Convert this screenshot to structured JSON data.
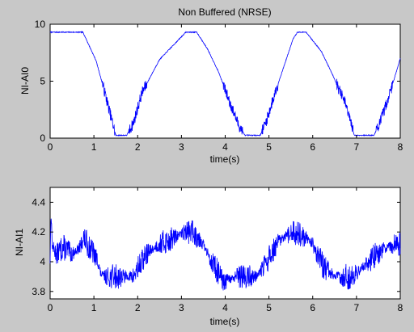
{
  "figure": {
    "background": "#c8c8c8",
    "axes_background": "#ffffff",
    "line_color": "#0000ff"
  },
  "chart_data": [
    {
      "type": "line",
      "title": "Non Buffered (NRSE)",
      "xlabel": "time(s)",
      "ylabel": "NI-AI0",
      "xlim": [
        0,
        8
      ],
      "ylim": [
        0,
        10
      ],
      "xticks": [
        0,
        1,
        2,
        3,
        4,
        5,
        6,
        7,
        8
      ],
      "yticks": [
        0,
        5,
        10
      ],
      "grid": false,
      "series": [
        {
          "x": [
            0,
            0.75,
            1.05,
            1.25,
            1.4,
            1.5,
            1.75,
            1.9,
            2.1,
            2.5,
            2.9,
            3.1,
            3.35,
            3.6,
            3.85,
            4.1,
            4.3,
            4.45,
            4.8,
            4.95,
            5.15,
            5.55,
            5.65,
            5.85,
            6.2,
            6.45,
            6.75,
            6.95,
            7.4,
            7.55,
            7.8,
            8.0
          ],
          "y": [
            9.3,
            9.3,
            6.8,
            4.0,
            1.7,
            0.25,
            0.25,
            1.3,
            4.0,
            6.9,
            8.5,
            9.3,
            9.3,
            7.8,
            5.8,
            3.2,
            1.2,
            0.25,
            0.25,
            1.6,
            4.1,
            8.7,
            9.3,
            9.3,
            7.6,
            5.6,
            3.0,
            0.25,
            0.25,
            1.5,
            4.4,
            7.0
          ]
        }
      ]
    },
    {
      "type": "line",
      "title": "",
      "xlabel": "time(s)",
      "ylabel": "NI-AI1",
      "xlim": [
        0,
        8
      ],
      "ylim": [
        3.75,
        4.5
      ],
      "xticks": [
        0,
        1,
        2,
        3,
        4,
        5,
        6,
        7,
        8
      ],
      "yticks": [
        3.8,
        4,
        4.2,
        4.4
      ],
      "grid": false,
      "series": [
        {
          "x": [
            0,
            0.02,
            0.05,
            0.15,
            0.3,
            0.5,
            0.7,
            0.75,
            0.85,
            1.0,
            1.1,
            1.15,
            1.25,
            1.45,
            1.6,
            1.9,
            2.0,
            2.2,
            2.5,
            2.75,
            2.9,
            3.05,
            3.25,
            3.45,
            3.55,
            3.7,
            3.85,
            3.95,
            4.1,
            4.3,
            4.5,
            4.7,
            4.85,
            4.95,
            5.1,
            5.25,
            5.4,
            5.6,
            5.7,
            5.9,
            6.0,
            6.15,
            6.3,
            6.5,
            6.7,
            6.85,
            7.0,
            7.15,
            7.35,
            7.5,
            7.65,
            7.8,
            8.0
          ],
          "y": [
            4.0,
            4.34,
            4.1,
            4.05,
            4.1,
            4.05,
            4.1,
            4.17,
            4.12,
            4.05,
            4.0,
            3.92,
            3.9,
            3.9,
            3.9,
            3.9,
            3.95,
            4.05,
            4.12,
            4.15,
            4.17,
            4.2,
            4.2,
            4.15,
            4.08,
            4.0,
            3.92,
            3.85,
            3.88,
            3.9,
            3.9,
            3.9,
            3.95,
            4.0,
            4.08,
            4.14,
            4.17,
            4.2,
            4.18,
            4.15,
            4.12,
            4.02,
            3.95,
            3.9,
            3.9,
            3.9,
            3.92,
            3.97,
            4.02,
            4.06,
            4.09,
            4.11,
            4.13
          ]
        }
      ]
    }
  ]
}
